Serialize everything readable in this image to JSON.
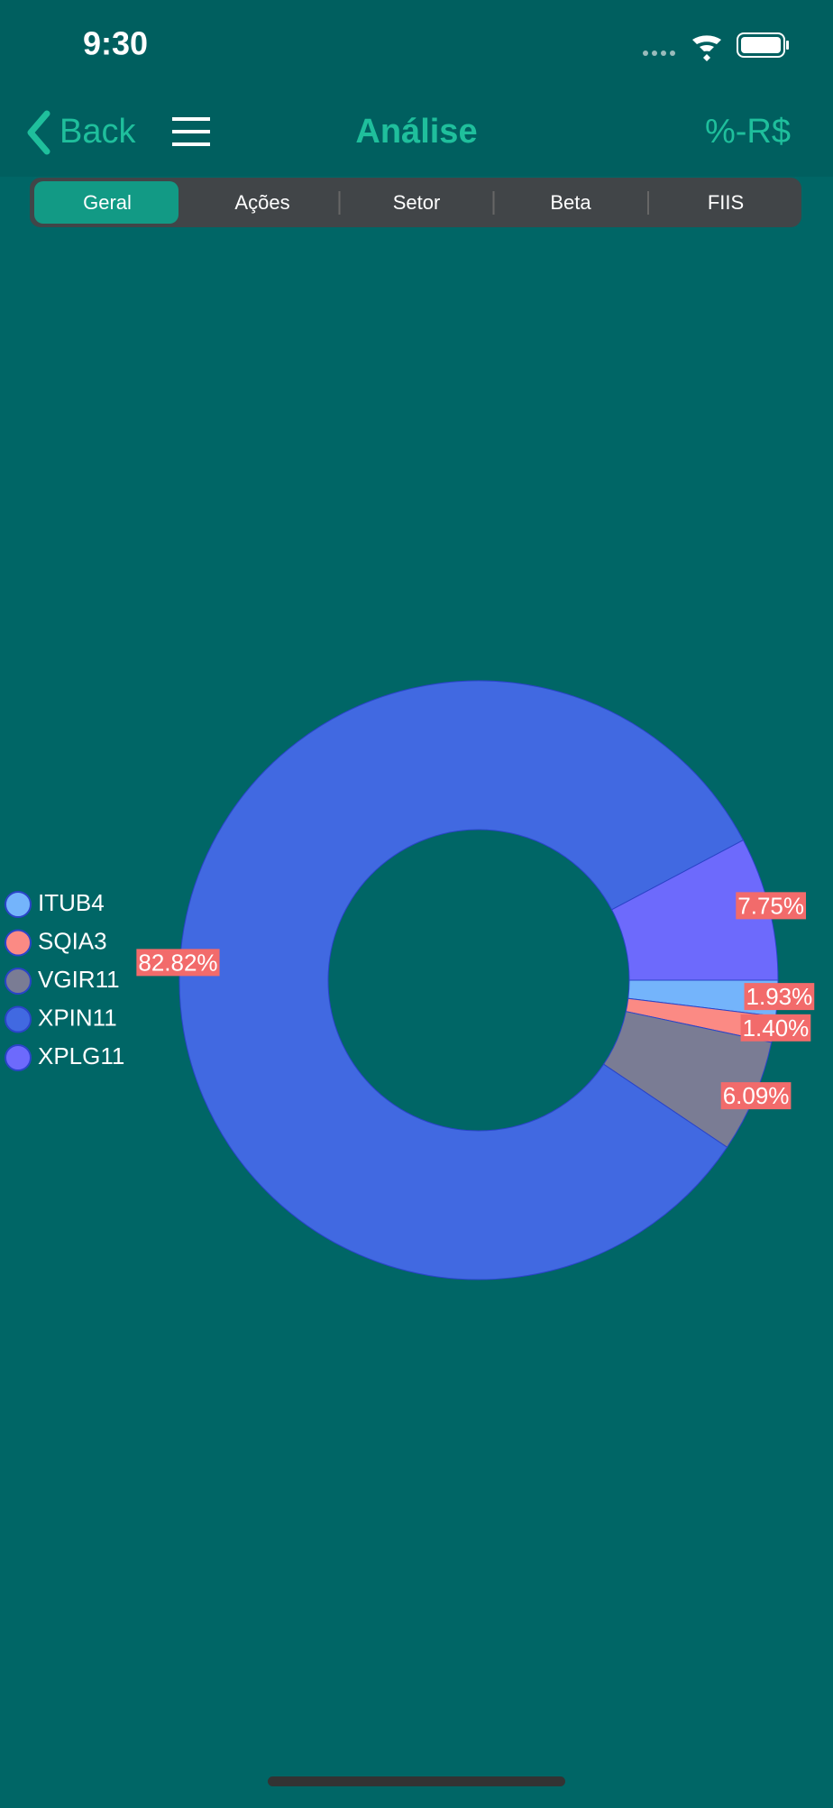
{
  "status_bar": {
    "time": "9:30"
  },
  "nav": {
    "back": "Back",
    "title": "Análise",
    "toggle": "%-R$"
  },
  "tabs": [
    "Geral",
    "Ações",
    "Setor",
    "Beta",
    "FIIS"
  ],
  "chart_data": {
    "type": "pie",
    "categories": [
      "ITUB4",
      "SQIA3",
      "VGIR11",
      "XPIN11",
      "XPLG11"
    ],
    "values": [
      1.93,
      1.4,
      6.09,
      82.82,
      7.75
    ],
    "value_labels": [
      "1.93%",
      "1.40%",
      "6.09%",
      "82.82%",
      "7.75%"
    ],
    "colors": [
      "#74b4fb",
      "#fb8a84",
      "#7a7c94",
      "#4169e1",
      "#6d6afc"
    ]
  }
}
